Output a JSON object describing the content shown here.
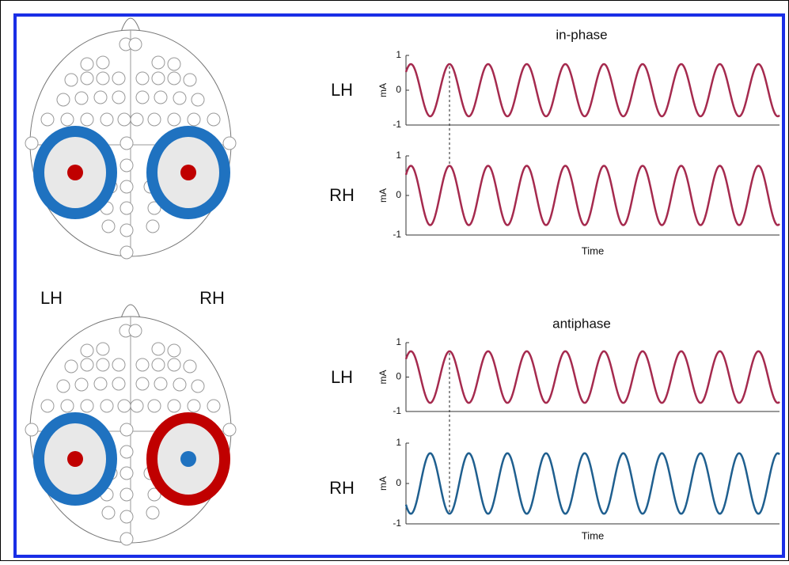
{
  "hemisphere_labels": [
    "LH",
    "RH"
  ],
  "plots": [
    {
      "title": "in-phase",
      "rows": [
        {
          "label": "LH",
          "ylabel": "mA",
          "ylim": [
            -1,
            1
          ],
          "yticks": [
            -1,
            0,
            1
          ],
          "color": "#a52a4e",
          "amplitude": 0.75
        },
        {
          "label": "RH",
          "ylabel": "mA",
          "ylim": [
            -1,
            1
          ],
          "yticks": [
            -1,
            0,
            1
          ],
          "color": "#a52a4e",
          "amplitude": 0.75,
          "xlabel": "Time"
        }
      ]
    },
    {
      "title": "antiphase",
      "rows": [
        {
          "label": "LH",
          "ylabel": "mA",
          "ylim": [
            -1,
            1
          ],
          "yticks": [
            -1,
            0,
            1
          ],
          "color": "#a52a4e",
          "amplitude": 0.75
        },
        {
          "label": "RH",
          "ylabel": "mA",
          "ylim": [
            -1,
            1
          ],
          "yticks": [
            -1,
            0,
            1
          ],
          "color": "#1f5f8f",
          "amplitude": -0.75,
          "xlabel": "Time"
        }
      ]
    }
  ]
}
